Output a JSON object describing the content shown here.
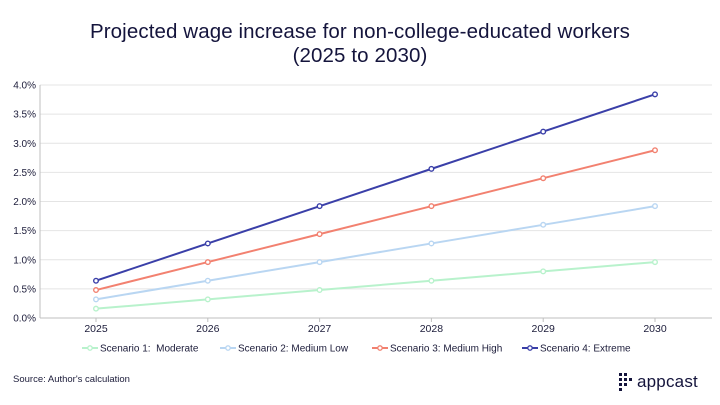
{
  "header": {
    "title_line1": "Projected wage increase for non-college-educated workers",
    "title_line2": "(2025 to 2030)"
  },
  "footer": {
    "source": "Source: Author's calculation",
    "brand": "appcast"
  },
  "colors": {
    "grid": "#e4e4e4",
    "axis": "#bfbfbf",
    "text": "#1c1c3a"
  },
  "chart_data": {
    "type": "line",
    "title": "Projected wage increase for non-college-educated workers (2025 to 2030)",
    "xlabel": "",
    "ylabel": "",
    "grid": "y",
    "legend": "bottom",
    "categories": [
      "2025",
      "2026",
      "2027",
      "2028",
      "2029",
      "2030"
    ],
    "ylim": [
      0,
      4.0
    ],
    "yticks": [
      "0.0%",
      "0.5%",
      "1.0%",
      "1.5%",
      "2.0%",
      "2.5%",
      "3.0%",
      "3.5%",
      "4.0%"
    ],
    "series": [
      {
        "name": "Scenario 1:  Moderate",
        "color": "#b8f2cc",
        "values": [
          0.16,
          0.32,
          0.48,
          0.64,
          0.8,
          0.96
        ]
      },
      {
        "name": "Scenario 2: Medium Low",
        "color": "#b9d6f2",
        "values": [
          0.32,
          0.64,
          0.96,
          1.28,
          1.6,
          1.92
        ]
      },
      {
        "name": "Scenario 3: Medium High",
        "color": "#f28170",
        "values": [
          0.48,
          0.96,
          1.44,
          1.92,
          2.4,
          2.88
        ]
      },
      {
        "name": "Scenario 4: Extreme",
        "color": "#3a3fa8",
        "values": [
          0.64,
          1.28,
          1.92,
          2.56,
          3.2,
          3.84
        ]
      }
    ]
  }
}
